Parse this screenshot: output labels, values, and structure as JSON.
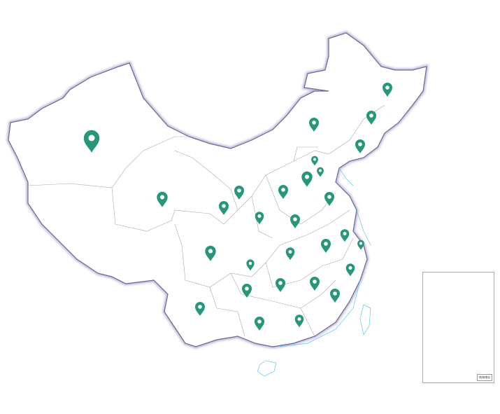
{
  "map": {
    "region": "China",
    "marker_color": "#27967a",
    "border_color": "#9a9ab8",
    "water_color": "#5bc8f0",
    "marker_count": 34,
    "inset": {
      "label": "南海诸岛"
    }
  }
}
